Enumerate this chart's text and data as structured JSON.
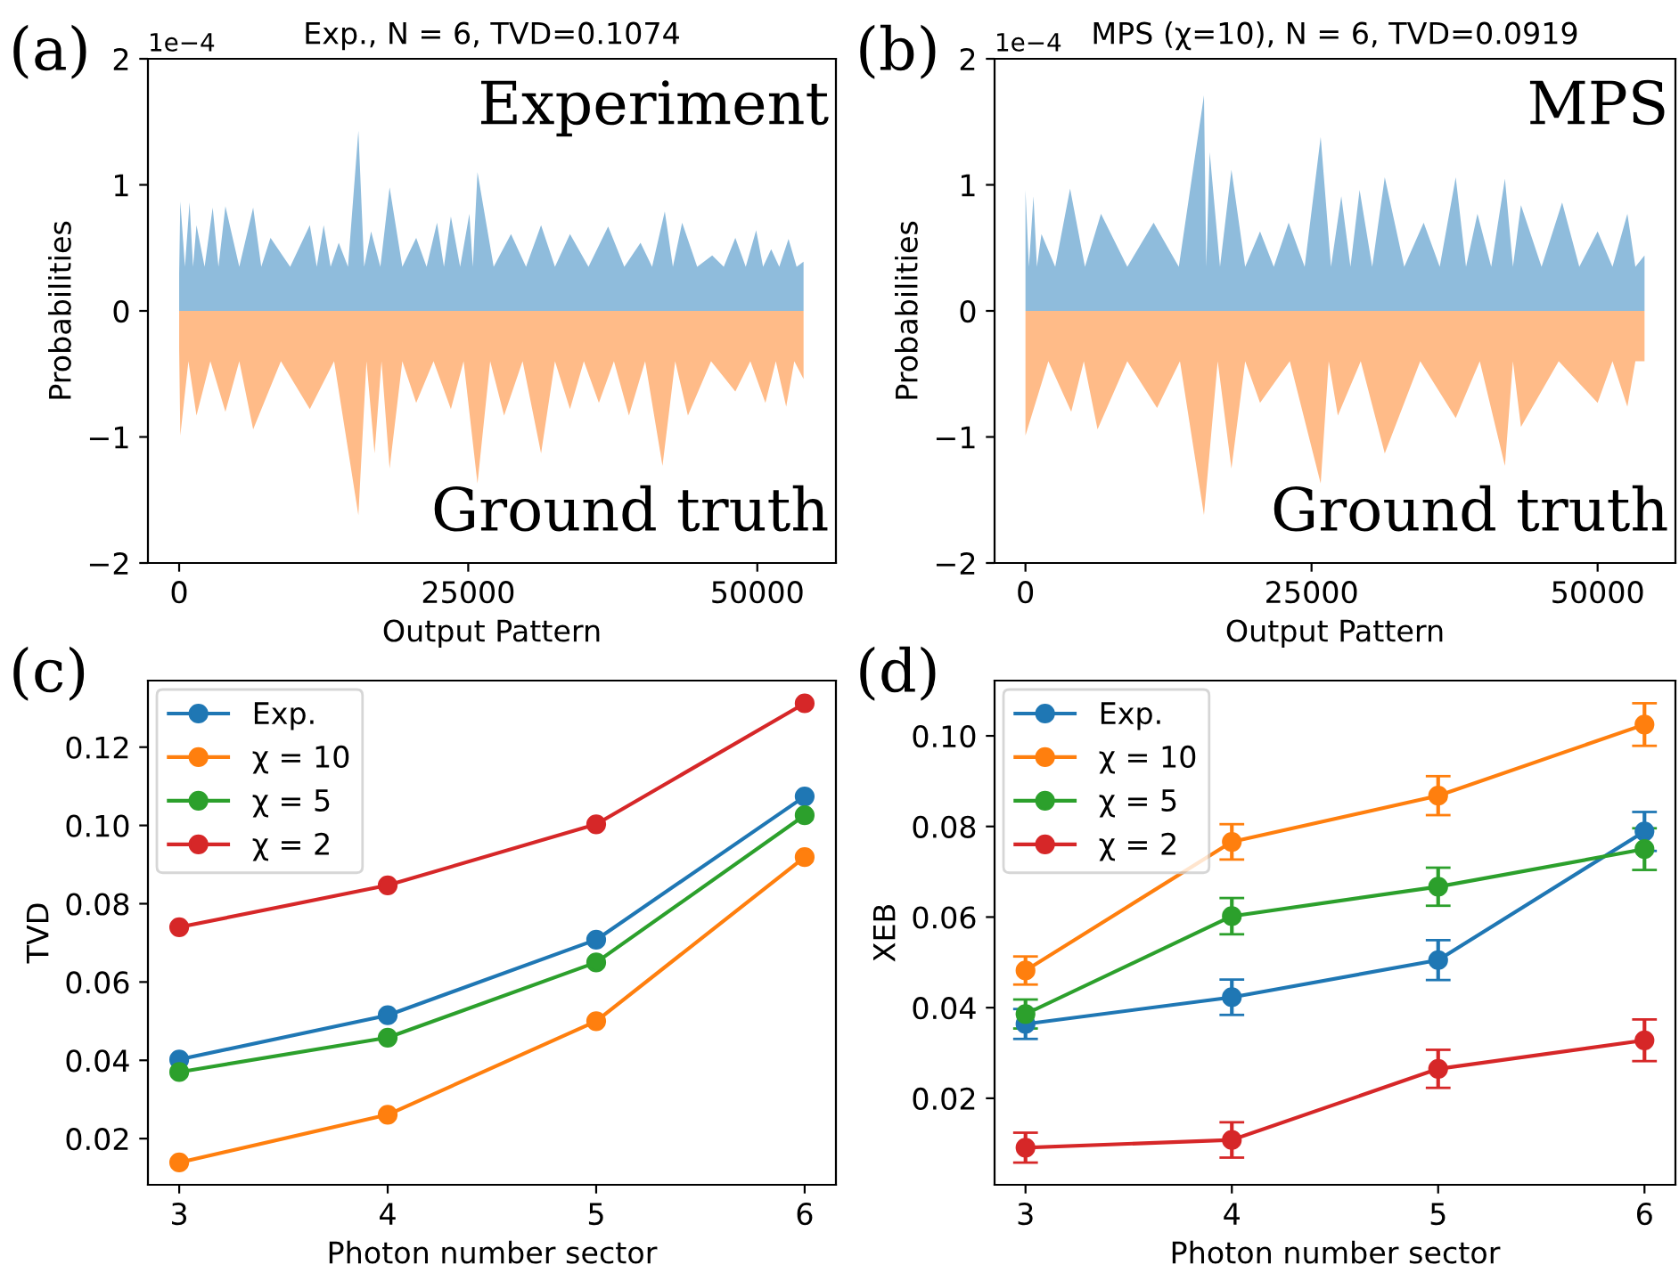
{
  "chart_data": [
    {
      "type": "area",
      "title": "Exp., N = 6, TVD=0.1074",
      "xlabel": "Output Pattern",
      "ylabel": "Probabilities",
      "annotations": [
        "(a)",
        "1e−4",
        "Experiment",
        "Ground truth"
      ],
      "xlim": [
        -2700,
        56800
      ],
      "xticks": [
        0,
        25000,
        50000
      ],
      "ylim": [
        -2,
        2
      ],
      "yticks": [
        {
          "value": -2,
          "label": "−2"
        },
        {
          "value": -1,
          "label": "−1"
        },
        0,
        1,
        2
      ],
      "grid": false,
      "legend": false,
      "series": [
        {
          "color": "#8fbcdc",
          "x": [
            0,
            100,
            500,
            900,
            1200,
            1500,
            2200,
            2900,
            3400,
            4000,
            5200,
            6400,
            7100,
            7900,
            9600,
            11300,
            11900,
            12500,
            13100,
            13800,
            14600,
            15500,
            16000,
            16600,
            17400,
            18200,
            19300,
            20500,
            21400,
            22300,
            22900,
            23500,
            24300,
            25100,
            25400,
            25800,
            27200,
            28700,
            30000,
            31300,
            32500,
            33800,
            35400,
            37100,
            38500,
            39900,
            40900,
            42000,
            42700,
            43500,
            44800,
            46100,
            47100,
            48100,
            49000,
            49900,
            50500,
            51200,
            51900,
            52700,
            53400,
            54000
          ],
          "values": [
            0.3,
            0.87,
            0.35,
            0.86,
            0.35,
            0.68,
            0.35,
            0.82,
            0.35,
            0.83,
            0.35,
            0.82,
            0.35,
            0.58,
            0.35,
            0.68,
            0.35,
            0.68,
            0.35,
            0.54,
            0.35,
            1.43,
            0.35,
            0.63,
            0.35,
            0.98,
            0.35,
            0.58,
            0.35,
            0.7,
            0.35,
            0.75,
            0.35,
            0.77,
            0.35,
            1.1,
            0.35,
            0.61,
            0.35,
            0.68,
            0.35,
            0.61,
            0.35,
            0.67,
            0.35,
            0.54,
            0.35,
            0.79,
            0.35,
            0.7,
            0.35,
            0.44,
            0.35,
            0.58,
            0.35,
            0.64,
            0.35,
            0.49,
            0.35,
            0.57,
            0.35,
            0.39
          ]
        },
        {
          "color": "#ffbb88",
          "x": [
            0,
            100,
            800,
            1500,
            2700,
            4000,
            5200,
            6400,
            8800,
            11300,
            13400,
            15500,
            16200,
            16900,
            17500,
            18200,
            19300,
            20500,
            22000,
            23500,
            24600,
            25800,
            26900,
            28100,
            29700,
            31300,
            32500,
            33800,
            35000,
            36300,
            37600,
            38900,
            40300,
            41800,
            42900,
            44000,
            46000,
            48100,
            49400,
            50700,
            51600,
            52500,
            53200,
            54000
          ],
          "values": [
            -0.3,
            -0.99,
            -0.4,
            -0.83,
            -0.4,
            -0.8,
            -0.4,
            -0.94,
            -0.4,
            -0.78,
            -0.4,
            -1.62,
            -0.4,
            -1.13,
            -0.4,
            -1.25,
            -0.4,
            -0.73,
            -0.4,
            -0.78,
            -0.4,
            -1.37,
            -0.4,
            -0.83,
            -0.4,
            -1.13,
            -0.4,
            -0.78,
            -0.4,
            -0.73,
            -0.4,
            -0.83,
            -0.4,
            -1.23,
            -0.4,
            -0.83,
            -0.4,
            -0.64,
            -0.4,
            -0.73,
            -0.4,
            -0.76,
            -0.4,
            -0.54
          ]
        }
      ]
    },
    {
      "type": "area",
      "title": "MPS (χ=10), N = 6, TVD=0.0919",
      "xlabel": "Output Pattern",
      "ylabel": "Probabilities",
      "annotations": [
        "(b)",
        "1e−4",
        "MPS",
        "Ground truth"
      ],
      "xlim": [
        -2700,
        56800
      ],
      "xticks": [
        0,
        25000,
        50000
      ],
      "ylim": [
        -2,
        2
      ],
      "yticks": [
        {
          "value": -2,
          "label": "−2"
        },
        {
          "value": -1,
          "label": "−1"
        },
        0,
        1,
        2
      ],
      "grid": false,
      "legend": false,
      "series": [
        {
          "color": "#8fbcdc",
          "x": [
            0,
            300,
            700,
            1000,
            1400,
            2600,
            3900,
            5200,
            6600,
            8900,
            11200,
            13400,
            15600,
            15800,
            16100,
            17000,
            18000,
            19200,
            20500,
            21700,
            23000,
            24400,
            25800,
            26700,
            27600,
            28400,
            29200,
            30300,
            31400,
            33100,
            34800,
            36200,
            37600,
            38500,
            39500,
            40700,
            41900,
            42600,
            43300,
            45100,
            46900,
            48400,
            50000,
            51300,
            52600,
            53300,
            54100
          ],
          "values": [
            0.96,
            0.35,
            0.91,
            0.35,
            0.61,
            0.35,
            0.97,
            0.35,
            0.77,
            0.35,
            0.7,
            0.35,
            1.71,
            0.35,
            1.26,
            0.35,
            1.12,
            0.35,
            0.63,
            0.35,
            0.7,
            0.35,
            1.38,
            0.35,
            0.91,
            0.35,
            0.96,
            0.35,
            1.06,
            0.35,
            0.7,
            0.35,
            1.06,
            0.35,
            0.77,
            0.35,
            1.05,
            0.35,
            0.84,
            0.35,
            0.86,
            0.35,
            0.63,
            0.35,
            0.77,
            0.35,
            0.44
          ]
        },
        {
          "color": "#ffbb88",
          "x": [
            0,
            2000,
            4000,
            5100,
            6300,
            8900,
            11500,
            13500,
            15600,
            16800,
            18000,
            19200,
            20500,
            23100,
            25800,
            26500,
            27300,
            29300,
            31400,
            34500,
            37600,
            39700,
            41900,
            42600,
            43300,
            46600,
            50000,
            51300,
            52600,
            53300,
            54100
          ],
          "values": [
            -0.99,
            -0.4,
            -0.8,
            -0.4,
            -0.94,
            -0.4,
            -0.77,
            -0.4,
            -1.62,
            -0.4,
            -1.25,
            -0.4,
            -0.73,
            -0.4,
            -1.37,
            -0.4,
            -0.83,
            -0.4,
            -1.13,
            -0.4,
            -0.85,
            -0.4,
            -1.23,
            -0.4,
            -0.92,
            -0.4,
            -0.73,
            -0.4,
            -0.76,
            -0.4,
            -0.4
          ]
        }
      ]
    },
    {
      "type": "line",
      "xlabel": "Photon number sector",
      "ylabel": "TVD",
      "annotations": [
        "(c)"
      ],
      "x": [
        3,
        4,
        5,
        6
      ],
      "xlim": [
        2.85,
        6.15
      ],
      "xticks": [
        3,
        4,
        5,
        6
      ],
      "ylim": [
        0.0082,
        0.137
      ],
      "yticks": [
        {
          "value": 0.02,
          "label": "0.02"
        },
        {
          "value": 0.04,
          "label": "0.04"
        },
        {
          "value": 0.06,
          "label": "0.06"
        },
        {
          "value": 0.08,
          "label": "0.08"
        },
        {
          "value": 0.1,
          "label": "0.10"
        },
        {
          "value": 0.12,
          "label": "0.12"
        }
      ],
      "marker": "circle",
      "line_style": "solid",
      "grid": false,
      "legend": "top left",
      "series": [
        {
          "name": "Exp.",
          "color": "#1f77b4",
          "values": [
            0.0402,
            0.0515,
            0.0708,
            0.1074
          ]
        },
        {
          "name": "χ = 10",
          "color": "#ff7f0e",
          "values": [
            0.0139,
            0.0261,
            0.05,
            0.0919
          ]
        },
        {
          "name": "χ = 5",
          "color": "#2ca02c",
          "values": [
            0.037,
            0.0458,
            0.065,
            0.1026
          ]
        },
        {
          "name": "χ = 2",
          "color": "#d62728",
          "values": [
            0.074,
            0.0847,
            0.1003,
            0.1312
          ]
        }
      ]
    },
    {
      "type": "line",
      "xlabel": "Photon number sector",
      "ylabel": "XEB",
      "annotations": [
        "(d)"
      ],
      "x": [
        3,
        4,
        5,
        6
      ],
      "xlim": [
        2.85,
        6.15
      ],
      "xticks": [
        3,
        4,
        5,
        6
      ],
      "ylim": [
        0.0009,
        0.1122
      ],
      "yticks": [
        {
          "value": 0.02,
          "label": "0.02"
        },
        {
          "value": 0.04,
          "label": "0.04"
        },
        {
          "value": 0.06,
          "label": "0.06"
        },
        {
          "value": 0.08,
          "label": "0.08"
        },
        {
          "value": 0.1,
          "label": "0.10"
        }
      ],
      "marker": "circle",
      "line_style": "solid",
      "grid": false,
      "legend": "top left",
      "series": [
        {
          "name": "Exp.",
          "color": "#1f77b4",
          "values": [
            0.0364,
            0.0423,
            0.0505,
            0.0789
          ],
          "errors": [
            0.0033,
            0.0039,
            0.0044,
            0.0043
          ]
        },
        {
          "name": "χ = 10",
          "color": "#ff7f0e",
          "values": [
            0.0482,
            0.0766,
            0.0868,
            0.1025
          ],
          "errors": [
            0.0031,
            0.0039,
            0.0043,
            0.0047
          ]
        },
        {
          "name": "χ = 5",
          "color": "#2ca02c",
          "values": [
            0.0386,
            0.0602,
            0.0667,
            0.075
          ],
          "errors": [
            0.0032,
            0.004,
            0.0042,
            0.0046
          ]
        },
        {
          "name": "χ = 2",
          "color": "#d62728",
          "values": [
            0.0091,
            0.0108,
            0.0265,
            0.0328
          ],
          "errors": [
            0.0033,
            0.0039,
            0.0042,
            0.0046
          ]
        }
      ]
    }
  ]
}
